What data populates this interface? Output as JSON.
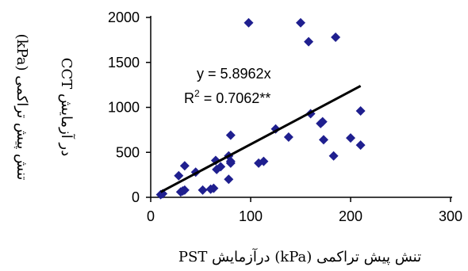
{
  "chart_data": {
    "type": "scatter",
    "xlabel": "تنش پیش تراکمی (kPa) درآزمایش PST",
    "ylabel_line1": "تنش پیش تراکمی (kPa)",
    "ylabel_line2": "در آزمایش CCT",
    "xlim": [
      0,
      300
    ],
    "ylim": [
      0,
      2000
    ],
    "xticks": [
      "0",
      "100",
      "200",
      "300"
    ],
    "yticks": [
      "0",
      "500",
      "1000",
      "1500",
      "2000"
    ],
    "grid": false,
    "legend": "none",
    "marker_color": "#1f1f8f",
    "trendline": {
      "slope": 5.8962,
      "x_range": [
        10,
        210
      ],
      "color": "#000000"
    },
    "equation": "y = 5.8962x",
    "r2_prefix": "R",
    "r2_sup": "2",
    "r2_suffix": " = 0.7062**",
    "points": [
      [
        10,
        30
      ],
      [
        12,
        40
      ],
      [
        30,
        60
      ],
      [
        32,
        70
      ],
      [
        34,
        80
      ],
      [
        28,
        240
      ],
      [
        34,
        350
      ],
      [
        45,
        280
      ],
      [
        52,
        80
      ],
      [
        60,
        90
      ],
      [
        63,
        100
      ],
      [
        65,
        410
      ],
      [
        66,
        310
      ],
      [
        70,
        340
      ],
      [
        78,
        200
      ],
      [
        78,
        460
      ],
      [
        80,
        690
      ],
      [
        80,
        380
      ],
      [
        80,
        400
      ],
      [
        108,
        380
      ],
      [
        113,
        400
      ],
      [
        125,
        760
      ],
      [
        138,
        670
      ],
      [
        98,
        1940
      ],
      [
        150,
        1940
      ],
      [
        158,
        1730
      ],
      [
        185,
        1780
      ],
      [
        160,
        930
      ],
      [
        170,
        820
      ],
      [
        172,
        840
      ],
      [
        173,
        640
      ],
      [
        183,
        460
      ],
      [
        200,
        660
      ],
      [
        210,
        580
      ],
      [
        210,
        960
      ]
    ]
  }
}
